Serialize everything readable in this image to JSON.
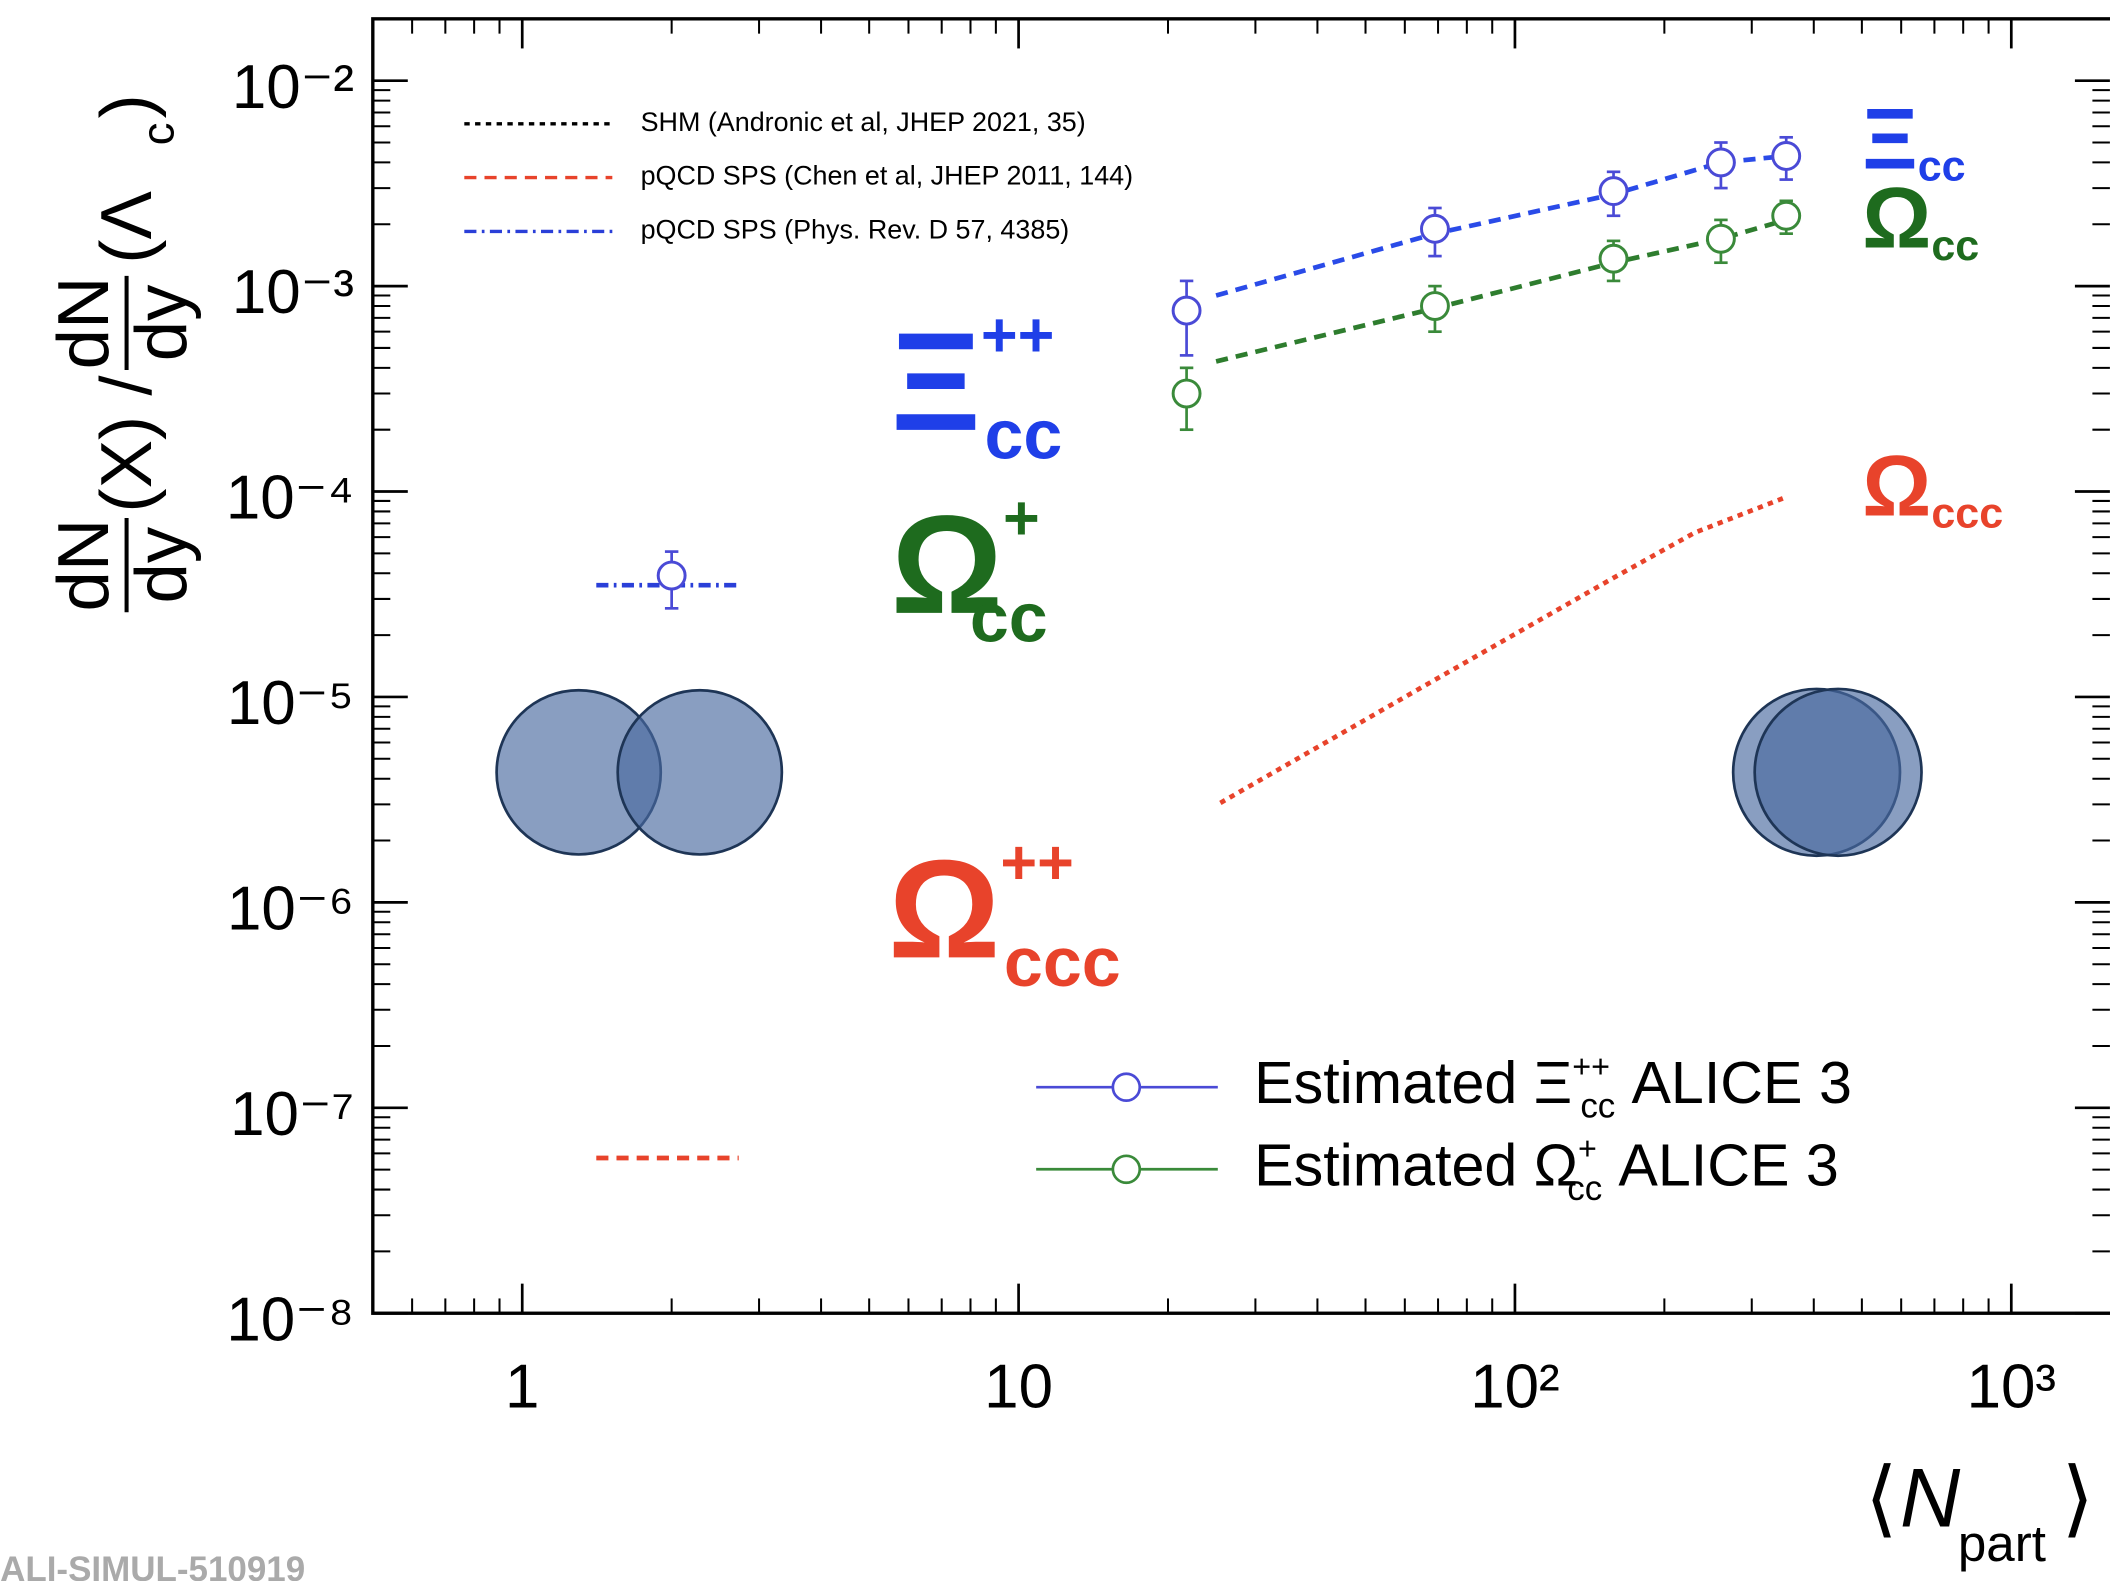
{
  "chart_data": {
    "type": "scatter",
    "xscale": "log",
    "yscale": "log",
    "xlim": [
      0.5,
      1580
    ],
    "ylim": [
      1e-08,
      0.02
    ],
    "xticks": [
      1,
      10,
      {
        "value": 100,
        "label": "10²"
      },
      {
        "value": 1000,
        "label": "10³"
      }
    ],
    "yticks": [
      {
        "value": 1e-08,
        "label": "10⁻⁸"
      },
      {
        "value": 1e-07,
        "label": "10⁻⁷"
      },
      {
        "value": 1e-06,
        "label": "10⁻⁶"
      },
      {
        "value": 1e-05,
        "label": "10⁻⁵"
      },
      {
        "value": 0.0001,
        "label": "10⁻⁴"
      },
      {
        "value": 0.001,
        "label": "10⁻³"
      },
      {
        "value": 0.01,
        "label": "10⁻²"
      }
    ],
    "x_label": {
      "open": "⟨",
      "text": "N",
      "sub": "part",
      "close": "⟩"
    },
    "y_label": {
      "num1": "dN",
      "den1": "dy",
      "mid": "(X) /",
      "num2": "dN",
      "den2": "dy",
      "tail": "(Λ",
      "sub": "c",
      "close": ")"
    },
    "series": [
      {
        "name": {
          "text": "Estimated Ξ",
          "sup": "++",
          "sub": "cc",
          "rest": "ALICE 3"
        },
        "color": "#4a4ad6",
        "x": [
          21.8,
          69,
          158,
          260,
          352
        ],
        "values": [
          0.00076,
          0.0019,
          0.0029,
          0.004,
          0.0043
        ],
        "errors": [
          0.0003,
          0.0005,
          0.0007,
          0.001,
          0.001
        ]
      },
      {
        "name": {
          "text": "Estimated Ω",
          "sup": "+",
          "sub": "cc",
          "rest": "ALICE 3"
        },
        "color": "#3a8a3a",
        "x": [
          21.8,
          69,
          158,
          260,
          352
        ],
        "values": [
          0.0003,
          0.0008,
          0.00136,
          0.0017,
          0.0022
        ],
        "errors": [
          0.0001,
          0.0002,
          0.0003,
          0.0004,
          0.0004
        ]
      },
      {
        "color": "#4a4ad6",
        "x": [
          2
        ],
        "values": [
          3.9e-05
        ],
        "errors": [
          1.2e-05
        ]
      }
    ],
    "models": [
      {
        "name": "SHM (Andronic et al, JHEP 2021, 35)",
        "color": "#000000",
        "dash": "dotted"
      },
      {
        "name": "pQCD SPS (Chen et al, JHEP 2011, 144)",
        "color": "#e8432b",
        "dash": "dashed"
      },
      {
        "name": "pQCD SPS (Phys. Rev. D 57, 4385)",
        "color": "#2a3fd8",
        "dash": "dashdot"
      }
    ],
    "curves": [
      {
        "color": "#2a4be8",
        "dash": "dashed",
        "x": [
          25,
          69,
          158,
          260,
          352
        ],
        "values": [
          0.0009,
          0.0018,
          0.0028,
          0.004,
          0.0043
        ]
      },
      {
        "color": "#2e7d2e",
        "dash": "dashed",
        "x": [
          25,
          69,
          158,
          260,
          352
        ],
        "values": [
          0.00043,
          0.00078,
          0.0013,
          0.0017,
          0.0021
        ]
      },
      {
        "color": "#e8432b",
        "dash": "dotted",
        "x": [
          25.5,
          66,
          158,
          230,
          352
        ],
        "values": [
          3.05e-06,
          1.14e-05,
          3.8e-05,
          6.3e-05,
          9.4e-05
        ]
      },
      {
        "color": "#2a3fd8",
        "dash": "dashdot",
        "x": [
          1.41,
          2.73
        ],
        "values": [
          3.5e-05,
          3.5e-05
        ]
      },
      {
        "color": "#e8432b",
        "dash": "dashed",
        "x": [
          1.41,
          2.73
        ],
        "values": [
          5.7e-08,
          5.7e-08
        ]
      }
    ],
    "annotations": [
      {
        "base": "Ξ",
        "sup": "++",
        "sub": "cc",
        "color": "#1f3fe8"
      },
      {
        "base": "Ω",
        "sup": "+",
        "sub": "cc",
        "color": "#1e6b1e"
      },
      {
        "base": "Ω",
        "sup": "++",
        "sub": "ccc",
        "color": "#e8432b"
      },
      {
        "base": "Ξ",
        "sub": "cc",
        "color": "#1f3fe8"
      },
      {
        "base": "Ω",
        "sub": "cc",
        "color": "#1e6b1e"
      },
      {
        "base": "Ω",
        "sub": "ccc",
        "color": "#e8432b"
      }
    ],
    "watermark": "ALI-SIMUL-510919"
  }
}
